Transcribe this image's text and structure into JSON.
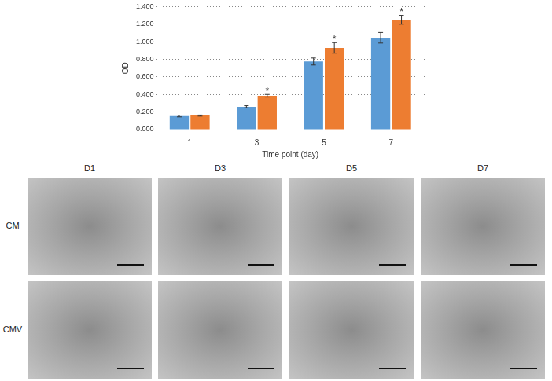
{
  "chart_data": {
    "type": "bar",
    "categories": [
      "1",
      "3",
      "5",
      "7"
    ],
    "x_label": "Time point (day)",
    "y_label": "OD",
    "series": [
      {
        "color": "#5b9bd5",
        "values": [
          0.155,
          0.26,
          0.775,
          1.045
        ],
        "errors": [
          0.01,
          0.012,
          0.04,
          0.06
        ]
      },
      {
        "color": "#ed7d31",
        "values": [
          0.16,
          0.385,
          0.93,
          1.25
        ],
        "errors": [
          0.006,
          0.015,
          0.06,
          0.05
        ]
      }
    ],
    "annotations": [
      {
        "category": "3",
        "series": 1,
        "text": "*"
      },
      {
        "category": "5",
        "series": 1,
        "text": "*"
      },
      {
        "category": "7",
        "series": 1,
        "text": "*"
      }
    ],
    "ylim": [
      0,
      1.4
    ],
    "yticks": [
      {
        "value": 0,
        "label": "0.000"
      },
      {
        "value": 0.2,
        "label": "0.200"
      },
      {
        "value": 0.4,
        "label": "0.400"
      },
      {
        "value": 0.6,
        "label": "0.600"
      },
      {
        "value": 0.8,
        "label": "0.800"
      },
      {
        "value": 1.0,
        "label": "1.000"
      },
      {
        "value": 1.2,
        "label": "1.200"
      },
      {
        "value": 1.4,
        "label": "1.400"
      }
    ],
    "grid": true,
    "legend": false
  },
  "panels": {
    "columns": [
      "D1",
      "D3",
      "D5",
      "D7"
    ],
    "rows": [
      "CM",
      "CMV"
    ]
  }
}
